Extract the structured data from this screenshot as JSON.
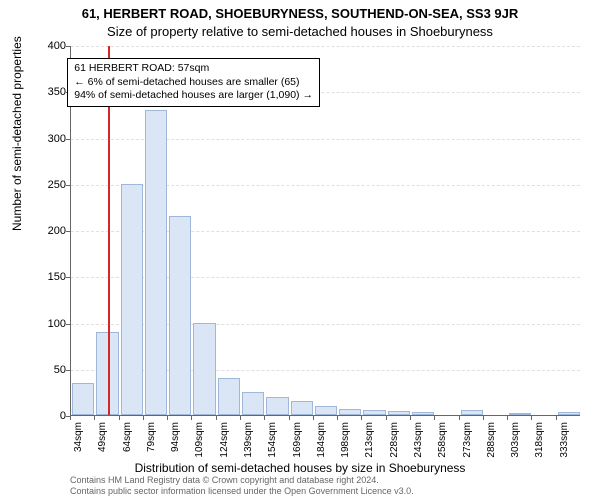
{
  "address_line": "61, HERBERT ROAD, SHOEBURYNESS, SOUTHEND-ON-SEA, SS3 9JR",
  "subtitle": "Size of property relative to semi-detached houses in Shoeburyness",
  "chart": {
    "type": "histogram",
    "ylabel": "Number of semi-detached properties",
    "xlabel": "Distribution of semi-detached houses by size in Shoeburyness",
    "ylim": [
      0,
      400
    ],
    "ytick_step": 50,
    "bar_fill": "#dae6f5",
    "bar_stroke": "#9fb8d9",
    "grid_color": "#e0e0e0",
    "axis_color": "#666666",
    "background_color": "#ffffff",
    "marker_color": "#d62728",
    "marker_at_sqm": 57,
    "bin_width_sqm": 15,
    "xtick_labels": [
      "34sqm",
      "49sqm",
      "64sqm",
      "79sqm",
      "94sqm",
      "109sqm",
      "124sqm",
      "139sqm",
      "154sqm",
      "169sqm",
      "184sqm",
      "198sqm",
      "213sqm",
      "228sqm",
      "243sqm",
      "258sqm",
      "273sqm",
      "288sqm",
      "303sqm",
      "318sqm",
      "333sqm"
    ],
    "values": [
      35,
      90,
      250,
      330,
      215,
      100,
      40,
      25,
      20,
      15,
      10,
      7,
      5,
      4,
      3,
      0,
      5,
      0,
      2,
      0,
      3
    ],
    "bar_width_ratio": 0.92
  },
  "infobox": {
    "line1": "61 HERBERT ROAD: 57sqm",
    "line2": "← 6% of semi-detached houses are smaller (65)",
    "line3": "94% of semi-detached houses are larger (1,090) →"
  },
  "footer": {
    "line1": "Contains HM Land Registry data © Crown copyright and database right 2024.",
    "line2": "Contains public sector information licensed under the Open Government Licence v3.0."
  }
}
